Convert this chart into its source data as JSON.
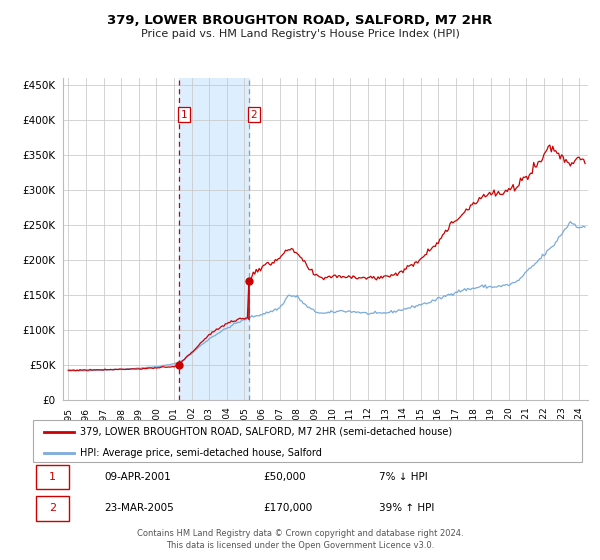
{
  "title": "379, LOWER BROUGHTON ROAD, SALFORD, M7 2HR",
  "subtitle": "Price paid vs. HM Land Registry's House Price Index (HPI)",
  "legend_property": "379, LOWER BROUGHTON ROAD, SALFORD, M7 2HR (semi-detached house)",
  "legend_hpi": "HPI: Average price, semi-detached house, Salford",
  "transaction1": {
    "label": "1",
    "date": "09-APR-2001",
    "price": "£50,000",
    "pct": "7% ↓ HPI",
    "vline_x": 2001.27
  },
  "transaction2": {
    "label": "2",
    "date": "23-MAR-2005",
    "price": "£170,000",
    "pct": "39% ↑ HPI",
    "vline_x": 2005.23
  },
  "sale1_y": 50000,
  "sale2_y": 170000,
  "property_color": "#cc0000",
  "hpi_color": "#7aabdb",
  "vline1_color": "#cc0000",
  "vline2_color": "#999999",
  "shade_color": "#ddeeff",
  "grid_color": "#cccccc",
  "background_color": "#ffffff",
  "ylim": [
    0,
    460000
  ],
  "xlim_start": 1994.7,
  "xlim_end": 2024.5,
  "footer": "Contains HM Land Registry data © Crown copyright and database right 2024.\nThis data is licensed under the Open Government Licence v3.0."
}
